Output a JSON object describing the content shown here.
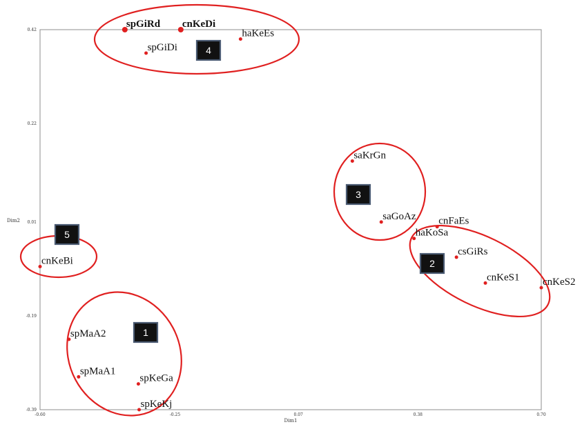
{
  "chart_data": {
    "type": "scatter",
    "xlabel": "Dim1",
    "ylabel": "Dim2",
    "xlim": [
      -0.6,
      0.7
    ],
    "ylim": [
      -0.39,
      0.42
    ],
    "x_ticks": [
      {
        "value": -0.6,
        "label": "-0.60"
      },
      {
        "value": -0.25,
        "label": "-0.25"
      },
      {
        "value": 0.07,
        "label": "0.07"
      },
      {
        "value": 0.38,
        "label": "0.38"
      },
      {
        "value": 0.7,
        "label": "0.70"
      }
    ],
    "y_ticks": [
      {
        "value": 0.42,
        "label": "0.42"
      },
      {
        "value": 0.22,
        "label": "0.22"
      },
      {
        "value": 0.01,
        "label": "0.01"
      },
      {
        "value": -0.19,
        "label": "-0.19"
      },
      {
        "value": -0.39,
        "label": "-0.39"
      }
    ],
    "points": [
      {
        "name": "spGiRd",
        "x": -0.38,
        "y": 0.42,
        "bold": true
      },
      {
        "name": "cnKeDi",
        "x": -0.235,
        "y": 0.42,
        "bold": true
      },
      {
        "name": "haKeEs",
        "x": -0.08,
        "y": 0.4,
        "bold": false
      },
      {
        "name": "spGiDi",
        "x": -0.325,
        "y": 0.37,
        "bold": false
      },
      {
        "name": "saKrGn",
        "x": 0.21,
        "y": 0.14,
        "bold": false
      },
      {
        "name": "saGoAz",
        "x": 0.285,
        "y": 0.01,
        "bold": false
      },
      {
        "name": "cnFaEs",
        "x": 0.43,
        "y": 0.0,
        "bold": false
      },
      {
        "name": "haKoSa",
        "x": 0.37,
        "y": -0.025,
        "bold": false
      },
      {
        "name": "csGiRs",
        "x": 0.48,
        "y": -0.065,
        "bold": false
      },
      {
        "name": "cnKeS1",
        "x": 0.555,
        "y": -0.12,
        "bold": false
      },
      {
        "name": "cnKeS2",
        "x": 0.7,
        "y": -0.13,
        "bold": false
      },
      {
        "name": "cnKeBi",
        "x": -0.6,
        "y": -0.085,
        "bold": false
      },
      {
        "name": "spMaA2",
        "x": -0.525,
        "y": -0.24,
        "bold": false
      },
      {
        "name": "spMaA1",
        "x": -0.5,
        "y": -0.32,
        "bold": false
      },
      {
        "name": "spKeGa",
        "x": -0.345,
        "y": -0.335,
        "bold": false
      },
      {
        "name": "spKeKj",
        "x": -0.343,
        "y": -0.39,
        "bold": false
      }
    ],
    "point_color": "#e02020",
    "clusters": [
      {
        "label": "1"
      },
      {
        "label": "2"
      },
      {
        "label": "3"
      },
      {
        "label": "4"
      },
      {
        "label": "5"
      }
    ],
    "cluster_color": "#e02020",
    "grid": false
  }
}
